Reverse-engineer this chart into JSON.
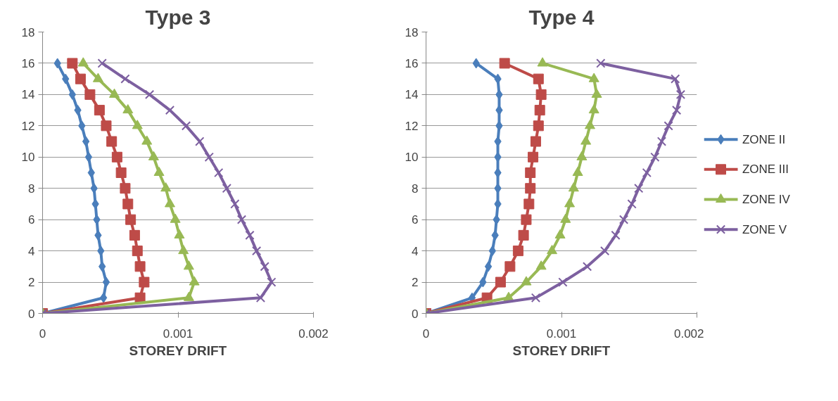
{
  "chart_data": [
    {
      "type": "line",
      "title": "Type 3",
      "xlabel": "STOREY DRIFT",
      "xlim": [
        0,
        0.002
      ],
      "xticks": [
        0,
        0.001,
        0.002
      ],
      "ylim": [
        0,
        18
      ],
      "yticks": [
        0,
        2,
        4,
        6,
        8,
        10,
        12,
        14,
        16,
        18
      ],
      "grid": "y",
      "legend": false,
      "series": [
        {
          "color": "#4a7ebb",
          "marker": "diamond",
          "x": [
            0,
            0.00045,
            0.00047,
            0.00044,
            0.00043,
            0.00041,
            0.0004,
            0.00039,
            0.00038,
            0.00036,
            0.00034,
            0.00032,
            0.00029,
            0.00026,
            0.00022,
            0.00017,
            0.00011
          ],
          "values": [
            0,
            1,
            2,
            3,
            4,
            5,
            6,
            7,
            8,
            9,
            10,
            11,
            12,
            13,
            14,
            15,
            16
          ]
        },
        {
          "color": "#be4b48",
          "marker": "square",
          "x": [
            0,
            0.00072,
            0.00075,
            0.00072,
            0.0007,
            0.00068,
            0.00065,
            0.00063,
            0.00061,
            0.00058,
            0.00055,
            0.00051,
            0.00047,
            0.00042,
            0.00035,
            0.00028,
            0.00022
          ],
          "values": [
            0,
            1,
            2,
            3,
            4,
            5,
            6,
            7,
            8,
            9,
            10,
            11,
            12,
            13,
            14,
            15,
            16
          ]
        },
        {
          "color": "#98b954",
          "marker": "triangle",
          "x": [
            0,
            0.00108,
            0.00112,
            0.00108,
            0.00104,
            0.00101,
            0.00098,
            0.00094,
            0.00091,
            0.00086,
            0.00082,
            0.00077,
            0.0007,
            0.00063,
            0.00053,
            0.00041,
            0.0003
          ],
          "values": [
            0,
            1,
            2,
            3,
            4,
            5,
            6,
            7,
            8,
            9,
            10,
            11,
            12,
            13,
            14,
            15,
            16
          ]
        },
        {
          "color": "#7d60a0",
          "marker": "cross",
          "x": [
            0,
            0.00161,
            0.00169,
            0.00164,
            0.00158,
            0.00153,
            0.00147,
            0.00142,
            0.00136,
            0.0013,
            0.00123,
            0.00116,
            0.00106,
            0.00094,
            0.00079,
            0.00061,
            0.00044
          ],
          "values": [
            0,
            1,
            2,
            3,
            4,
            5,
            6,
            7,
            8,
            9,
            10,
            11,
            12,
            13,
            14,
            15,
            16
          ]
        }
      ]
    },
    {
      "type": "line",
      "title": "Type 4",
      "xlabel": "STOREY DRIFT",
      "xlim": [
        0,
        0.002
      ],
      "xticks": [
        0,
        0.001,
        0.002
      ],
      "ylim": [
        0,
        18
      ],
      "yticks": [
        0,
        2,
        4,
        6,
        8,
        10,
        12,
        14,
        16,
        18
      ],
      "grid": "y",
      "legend": "right",
      "series": [
        {
          "name": "ZONE II",
          "color": "#4a7ebb",
          "marker": "diamond",
          "x": [
            0,
            0.00034,
            0.00042,
            0.00046,
            0.00049,
            0.00051,
            0.00052,
            0.00053,
            0.00053,
            0.00053,
            0.00053,
            0.00053,
            0.00054,
            0.00054,
            0.00054,
            0.00053,
            0.00037
          ],
          "values": [
            0,
            1,
            2,
            3,
            4,
            5,
            6,
            7,
            8,
            9,
            10,
            11,
            12,
            13,
            14,
            15,
            16
          ]
        },
        {
          "name": "ZONE III",
          "color": "#be4b48",
          "marker": "square",
          "x": [
            0,
            0.00045,
            0.00055,
            0.00062,
            0.00068,
            0.00072,
            0.00074,
            0.00076,
            0.00077,
            0.00077,
            0.00079,
            0.00081,
            0.00083,
            0.00084,
            0.00085,
            0.00083,
            0.00058
          ],
          "values": [
            0,
            1,
            2,
            3,
            4,
            5,
            6,
            7,
            8,
            9,
            10,
            11,
            12,
            13,
            14,
            15,
            16
          ]
        },
        {
          "name": "ZONE IV",
          "color": "#98b954",
          "marker": "triangle",
          "x": [
            0,
            0.00061,
            0.00074,
            0.00085,
            0.00093,
            0.00099,
            0.00103,
            0.00106,
            0.00109,
            0.00112,
            0.00115,
            0.00118,
            0.00121,
            0.00124,
            0.00126,
            0.00124,
            0.00086
          ],
          "values": [
            0,
            1,
            2,
            3,
            4,
            5,
            6,
            7,
            8,
            9,
            10,
            11,
            12,
            13,
            14,
            15,
            16
          ]
        },
        {
          "name": "ZONE V",
          "color": "#7d60a0",
          "marker": "cross",
          "x": [
            0,
            0.00081,
            0.00101,
            0.00119,
            0.00132,
            0.0014,
            0.00146,
            0.00152,
            0.00157,
            0.00163,
            0.00169,
            0.00174,
            0.00179,
            0.00185,
            0.00188,
            0.00184,
            0.00129
          ],
          "values": [
            0,
            1,
            2,
            3,
            4,
            5,
            6,
            7,
            8,
            9,
            10,
            11,
            12,
            13,
            14,
            15,
            16
          ]
        }
      ]
    }
  ]
}
